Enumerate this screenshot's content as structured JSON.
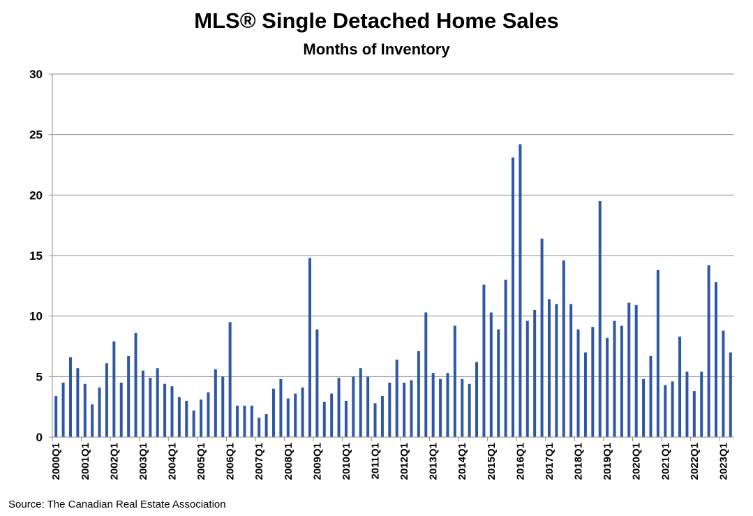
{
  "chart_data": {
    "type": "bar",
    "title": "MLS® Single Detached Home Sales",
    "subtitle": "Months of Inventory",
    "source": "Source: The Canadian Real Estate Association",
    "ylim": [
      0,
      30
    ],
    "yticks": [
      0,
      5,
      10,
      15,
      20,
      25,
      30
    ],
    "grid": true,
    "bar_color": "#2e58a6",
    "tick_labels": [
      "2000Q1",
      "2001Q1",
      "2002Q1",
      "2003Q1",
      "2004Q1",
      "2005Q1",
      "2006Q1",
      "2007Q1",
      "2008Q1",
      "2009Q1",
      "2010Q1",
      "2011Q1",
      "2012Q1",
      "2013Q1",
      "2014Q1",
      "2015Q1",
      "2016Q1",
      "2017Q1",
      "2018Q1",
      "2019Q1",
      "2020Q1",
      "2021Q1",
      "2022Q1",
      "2023Q1"
    ],
    "categories": [
      "2000Q1",
      "2000Q2",
      "2000Q3",
      "2000Q4",
      "2001Q1",
      "2001Q2",
      "2001Q3",
      "2001Q4",
      "2002Q1",
      "2002Q2",
      "2002Q3",
      "2002Q4",
      "2003Q1",
      "2003Q2",
      "2003Q3",
      "2003Q4",
      "2004Q1",
      "2004Q2",
      "2004Q3",
      "2004Q4",
      "2005Q1",
      "2005Q2",
      "2005Q3",
      "2005Q4",
      "2006Q1",
      "2006Q2",
      "2006Q3",
      "2006Q4",
      "2007Q1",
      "2007Q2",
      "2007Q3",
      "2007Q4",
      "2008Q1",
      "2008Q2",
      "2008Q3",
      "2008Q4",
      "2009Q1",
      "2009Q2",
      "2009Q3",
      "2009Q4",
      "2010Q1",
      "2010Q2",
      "2010Q3",
      "2010Q4",
      "2011Q1",
      "2011Q2",
      "2011Q3",
      "2011Q4",
      "2012Q1",
      "2012Q2",
      "2012Q3",
      "2012Q4",
      "2013Q1",
      "2013Q2",
      "2013Q3",
      "2013Q4",
      "2014Q1",
      "2014Q2",
      "2014Q3",
      "2014Q4",
      "2015Q1",
      "2015Q2",
      "2015Q3",
      "2015Q4",
      "2016Q1",
      "2016Q2",
      "2016Q3",
      "2016Q4",
      "2017Q1",
      "2017Q2",
      "2017Q3",
      "2017Q4",
      "2018Q1",
      "2018Q2",
      "2018Q3",
      "2018Q4",
      "2019Q1",
      "2019Q2",
      "2019Q3",
      "2019Q4",
      "2020Q1",
      "2020Q2",
      "2020Q3",
      "2020Q4",
      "2021Q1",
      "2021Q2",
      "2021Q3",
      "2021Q4",
      "2022Q1",
      "2022Q2",
      "2022Q3",
      "2022Q4",
      "2023Q1",
      "2023Q2"
    ],
    "values": [
      3.4,
      4.5,
      6.6,
      5.7,
      4.4,
      2.7,
      4.1,
      6.1,
      7.9,
      4.5,
      6.7,
      8.6,
      5.5,
      4.9,
      5.7,
      4.4,
      4.2,
      3.3,
      3.0,
      2.2,
      3.1,
      3.7,
      5.6,
      5.0,
      9.5,
      2.6,
      2.6,
      2.6,
      1.6,
      1.9,
      4.0,
      4.8,
      3.2,
      3.6,
      4.1,
      14.8,
      8.9,
      2.9,
      3.6,
      4.9,
      3.0,
      5.0,
      5.7,
      5.0,
      2.8,
      3.4,
      4.5,
      6.4,
      4.5,
      4.7,
      7.1,
      10.3,
      5.3,
      4.8,
      5.3,
      9.2,
      4.8,
      4.4,
      6.2,
      12.6,
      10.3,
      8.9,
      13.0,
      23.1,
      24.2,
      9.6,
      10.5,
      16.4,
      11.4,
      11.0,
      14.6,
      11.0,
      8.9,
      7.0,
      9.1,
      19.5,
      8.2,
      9.6,
      9.2,
      11.1,
      10.9,
      4.8,
      6.7,
      13.8,
      4.3,
      4.6,
      8.3,
      5.4,
      3.8,
      5.4,
      14.2,
      12.8,
      8.8,
      7.0
    ]
  }
}
